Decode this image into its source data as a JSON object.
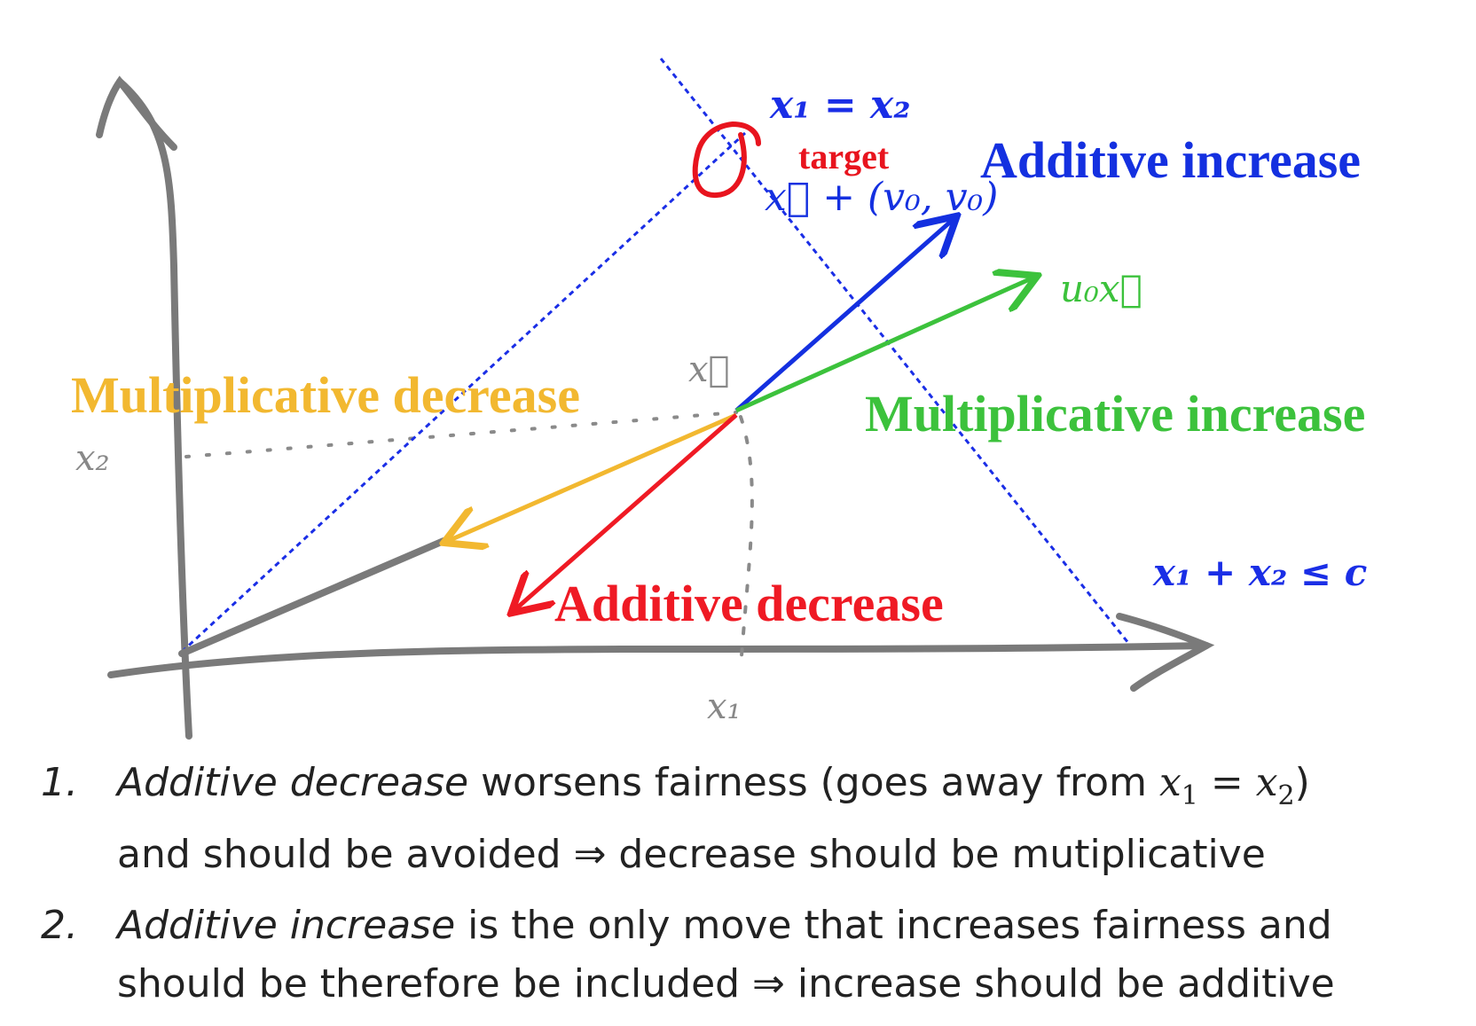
{
  "diagram": {
    "labels": {
      "fairness_line": "x₁ = x₂",
      "target": "target",
      "additive_increase_vector": "x⃗ + (v₀, v₀)",
      "additive_increase": "Additive increase",
      "multiplicative_increase_vector": "u₀x⃗",
      "x_vec": "x⃗",
      "multiplicative_decrease": "Multiplicative decrease",
      "multiplicative_increase": "Multiplicative increase",
      "x2_axis": "x₂",
      "capacity": "x₁ + x₂ ≤ c",
      "additive_decrease": "Additive decrease",
      "x1_axis": "x₁"
    },
    "colors": {
      "axis": "#777777",
      "fairness": "#1a2ee6",
      "target": "#e8141e",
      "additive_increase": "#1430e0",
      "multiplicative_increase": "#3cc23c",
      "multiplicative_decrease": "#f2b830",
      "additive_decrease": "#ef1a24"
    }
  },
  "notes": [
    {
      "number": "1.",
      "term": "Additive decrease",
      "text_a": " worsens fairness (goes away from ",
      "math_a": "x",
      "sub_a": "1",
      "eq": " = ",
      "math_b": "x",
      "sub_b": "2",
      "text_b": ")",
      "line2": "and should be avoided ⇒ decrease should be mutiplicative"
    },
    {
      "number": "2.",
      "term": "Additive increase",
      "text_a": " is the only move that increases fairness and",
      "line2": "should be therefore be included ⇒ increase should be additive"
    }
  ]
}
